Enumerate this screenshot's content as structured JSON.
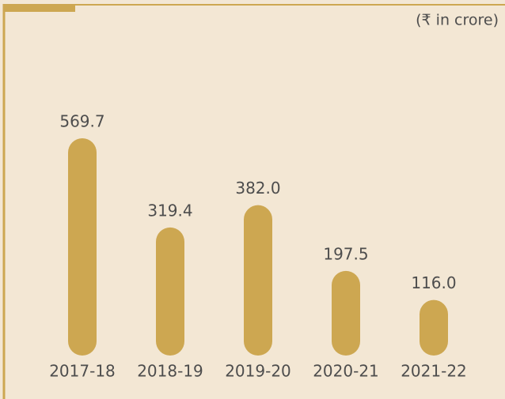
{
  "chart_data": {
    "type": "bar",
    "subtitle": "(₹ in crore)",
    "categories": [
      "2017-18",
      "2018-19",
      "2019-20",
      "2020-21",
      "2021-22"
    ],
    "values": [
      569.7,
      319.4,
      382.0,
      197.5,
      116.0
    ],
    "value_labels": [
      "569.7",
      "319.4",
      "382.0",
      "197.5",
      "116.0"
    ],
    "color": "#cda751"
  }
}
